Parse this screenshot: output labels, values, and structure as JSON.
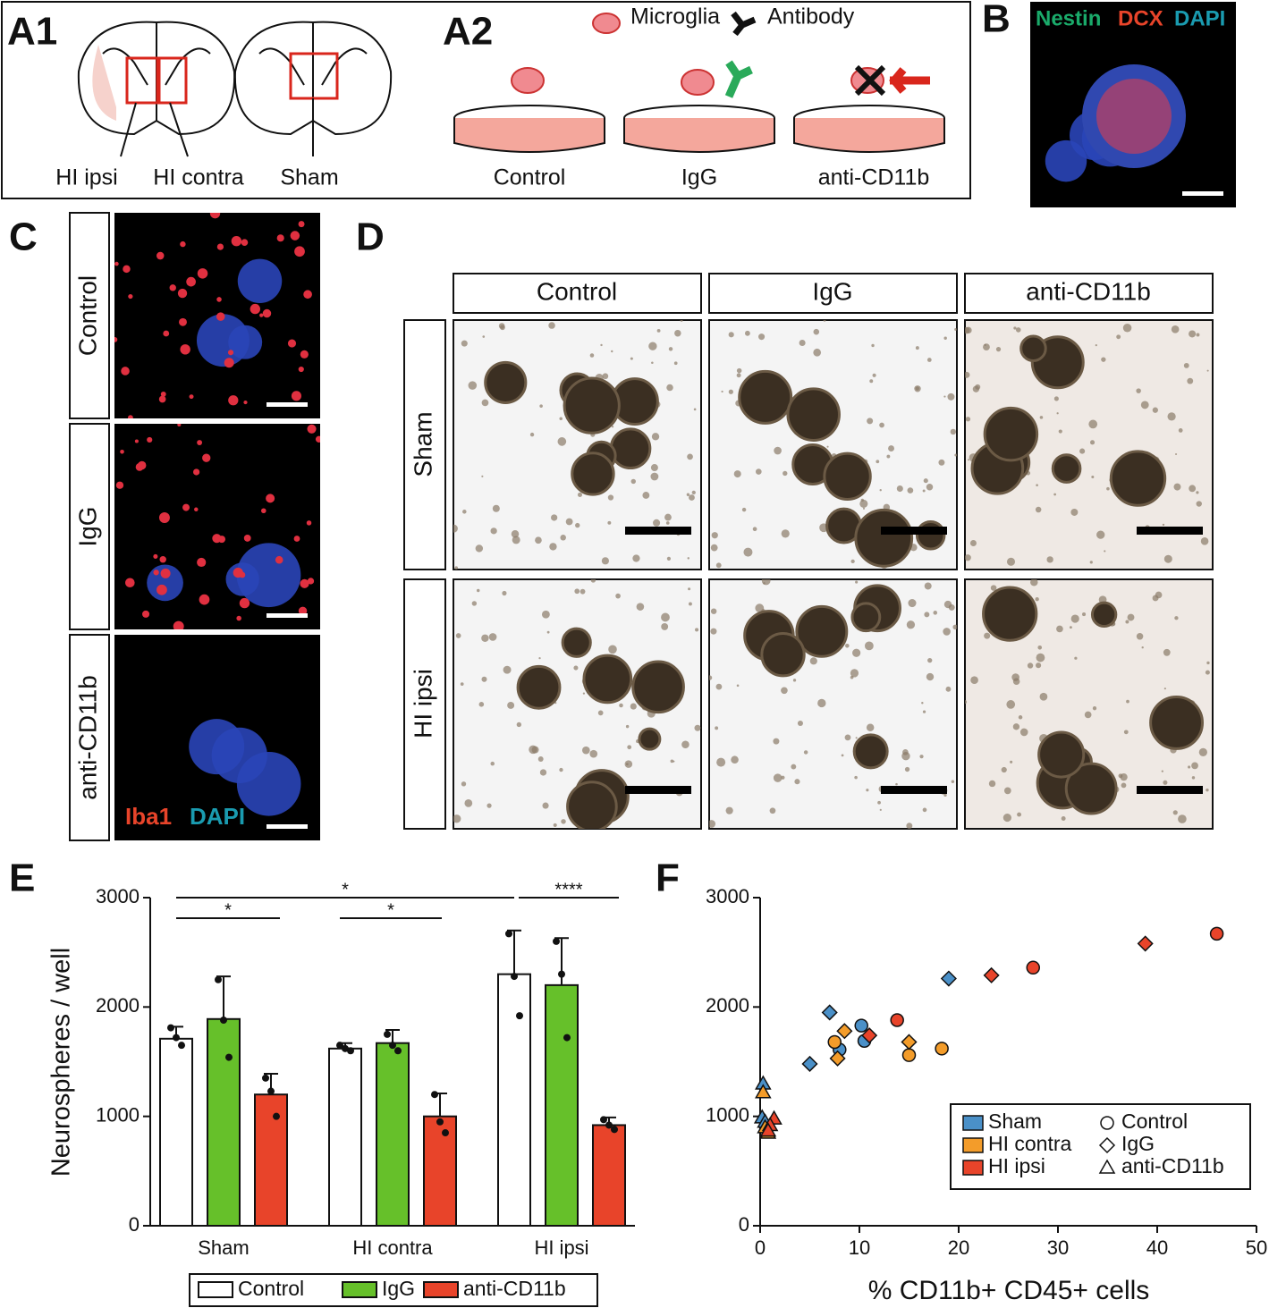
{
  "panels": {
    "a1": {
      "label": "A1",
      "regions": [
        "HI ipsi",
        "HI contra",
        "Sham"
      ]
    },
    "a2": {
      "label": "A2",
      "legend": [
        "Microglia",
        "Antibody"
      ],
      "conditions": [
        "Control",
        "IgG",
        "anti-CD11b"
      ]
    },
    "b": {
      "label": "B",
      "stains": [
        "Nestin",
        "DCX",
        "DAPI"
      ]
    },
    "c": {
      "label": "C",
      "rows": [
        "Control",
        "IgG",
        "anti-CD11b"
      ],
      "stains": [
        "Iba1",
        "DAPI"
      ]
    },
    "d": {
      "label": "D",
      "columns": [
        "Control",
        "IgG",
        "anti-CD11b"
      ],
      "rows": [
        "Sham",
        "HI ipsi"
      ]
    },
    "e": {
      "label": "E"
    },
    "f": {
      "label": "F"
    }
  },
  "chart_data": [
    {
      "type": "bar",
      "y_label": "Neurospheres / well",
      "categories": [
        "Sham",
        "HI contra",
        "HI ipsi"
      ],
      "series": [
        {
          "name": "Control",
          "color": "#ffffff",
          "values": [
            1710,
            1620,
            2300
          ],
          "errors": [
            110,
            50,
            400
          ],
          "points": [
            [
              1810,
              1720,
              1650
            ],
            [
              1650,
              1620,
              1600
            ],
            [
              2670,
              2280,
              1920
            ]
          ]
        },
        {
          "name": "IgG",
          "color": "#66c02a",
          "values": [
            1890,
            1670,
            2200
          ],
          "errors": [
            390,
            120,
            430
          ],
          "points": [
            [
              2250,
              1880,
              1540
            ],
            [
              1750,
              1650,
              1600
            ],
            [
              2600,
              2300,
              1720
            ]
          ]
        },
        {
          "name": "anti-CD11b",
          "color": "#e8442a",
          "values": [
            1200,
            1000,
            920
          ],
          "errors": [
            190,
            210,
            70
          ],
          "points": [
            [
              1350,
              1230,
              1000
            ],
            [
              1200,
              950,
              850
            ],
            [
              970,
              920,
              880
            ]
          ]
        }
      ],
      "ylim": [
        0,
        3000
      ],
      "yticks": [
        0,
        1000,
        2000,
        3000
      ],
      "annotations": [
        "*",
        "*",
        "*",
        "****"
      ]
    },
    {
      "type": "scatter",
      "x_label": "% CD11b+ CD45+ cells",
      "xlim": [
        0,
        50
      ],
      "xticks": [
        0,
        10,
        20,
        30,
        40,
        50
      ],
      "ylim": [
        0,
        3000
      ],
      "yticks": [
        0,
        1000,
        2000,
        3000
      ],
      "groups": [
        {
          "name": "Sham",
          "color": "#4a90c8"
        },
        {
          "name": "HI contra",
          "color": "#f39c2a"
        },
        {
          "name": "HI ipsi",
          "color": "#e8442a"
        }
      ],
      "markers": [
        {
          "name": "Control",
          "shape": "circle"
        },
        {
          "name": "IgG",
          "shape": "diamond"
        },
        {
          "name": "anti-CD11b",
          "shape": "triangle"
        }
      ],
      "series": [
        {
          "group": "Sham",
          "marker": "Control",
          "x": [
            10.2,
            10.5,
            8
          ],
          "y": [
            1830,
            1690,
            1610
          ]
        },
        {
          "group": "Sham",
          "marker": "IgG",
          "x": [
            7,
            5,
            19
          ],
          "y": [
            1950,
            1480,
            2260
          ]
        },
        {
          "group": "Sham",
          "marker": "anti-CD11b",
          "x": [
            0.3,
            0.2,
            0.5
          ],
          "y": [
            1300,
            990,
            950
          ]
        },
        {
          "group": "HI contra",
          "marker": "Control",
          "x": [
            7.5,
            15,
            18.3
          ],
          "y": [
            1680,
            1560,
            1620
          ]
        },
        {
          "group": "HI contra",
          "marker": "IgG",
          "x": [
            8.5,
            7.8,
            15
          ],
          "y": [
            1780,
            1530,
            1680
          ]
        },
        {
          "group": "HI contra",
          "marker": "anti-CD11b",
          "x": [
            0.3,
            0.8,
            0.5
          ],
          "y": [
            1220,
            850,
            900
          ]
        },
        {
          "group": "HI ipsi",
          "marker": "Control",
          "x": [
            13.8,
            27.5,
            46
          ],
          "y": [
            1880,
            2360,
            2670
          ]
        },
        {
          "group": "HI ipsi",
          "marker": "IgG",
          "x": [
            11,
            23.3,
            38.8
          ],
          "y": [
            1740,
            2290,
            2580
          ]
        },
        {
          "group": "HI ipsi",
          "marker": "anti-CD11b",
          "x": [
            1.4,
            1,
            0.8
          ],
          "y": [
            980,
            920,
            870
          ]
        }
      ]
    }
  ]
}
